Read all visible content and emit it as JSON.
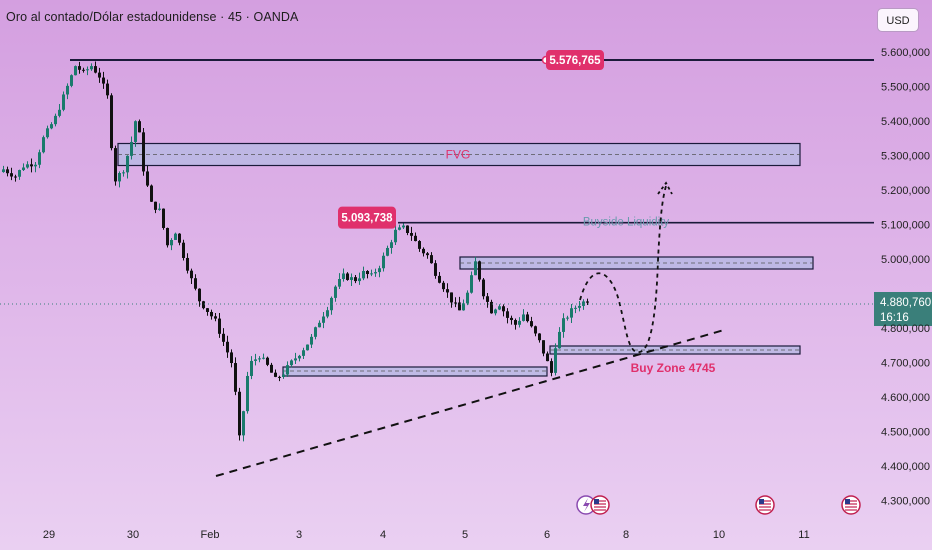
{
  "header": {
    "title": "Oro al contado/Dólar estadounidense · 45 · OANDA",
    "currency": "USD"
  },
  "colors": {
    "candle_up": "#1a7a6c",
    "candle_down": "#111111",
    "zone_fill": "#b8b8e4",
    "zone_border": "#1a1a3a",
    "label_bg": "#e0306c",
    "label_text": "#ffffff",
    "annotation_pink": "#e0306c",
    "annotation_teal": "#6a9aae",
    "price_tag": "#3a7f7a"
  },
  "chart_data": {
    "type": "candlestick",
    "symbol": "Oro al contado/Dólar estadounidense",
    "interval": "45",
    "source": "OANDA",
    "ylim": [
      4250000,
      5680000
    ],
    "yticks": [
      "5.600,000",
      "5.500,000",
      "5.400,000",
      "5.300,000",
      "5.200,000",
      "5.100,000",
      "5.000,000",
      "4.800,000",
      "4.700,000",
      "4.600,000",
      "4.500,000",
      "4.400,000",
      "4.300,000"
    ],
    "yticks_values": [
      5600000,
      5500000,
      5400000,
      5300000,
      5200000,
      5100000,
      5000000,
      4800000,
      4700000,
      4600000,
      4500000,
      4400000,
      4300000
    ],
    "xticks": [
      "29",
      "30",
      "Feb",
      "3",
      "4",
      "5",
      "6",
      "8",
      "10",
      "11"
    ],
    "current_price": "4.880,760",
    "countdown": "16:16",
    "price_path": [
      [
        0,
        5260000
      ],
      [
        3,
        5240000
      ],
      [
        5,
        5270000
      ],
      [
        8,
        5280000
      ],
      [
        10,
        5350000
      ],
      [
        13,
        5410000
      ],
      [
        15,
        5470000
      ],
      [
        17,
        5530000
      ],
      [
        18,
        5560000
      ],
      [
        20,
        5540000
      ],
      [
        22,
        5560000
      ],
      [
        24,
        5530000
      ],
      [
        26,
        5470000
      ],
      [
        27,
        5330000
      ],
      [
        28,
        5230000
      ],
      [
        30,
        5260000
      ],
      [
        32,
        5340000
      ],
      [
        33,
        5400000
      ],
      [
        34,
        5360000
      ],
      [
        35,
        5260000
      ],
      [
        37,
        5160000
      ],
      [
        39,
        5140000
      ],
      [
        41,
        5040000
      ],
      [
        43,
        5080000
      ],
      [
        45,
        5010000
      ],
      [
        47,
        4940000
      ],
      [
        49,
        4880000
      ],
      [
        51,
        4850000
      ],
      [
        53,
        4820000
      ],
      [
        55,
        4760000
      ],
      [
        57,
        4700000
      ],
      [
        58,
        4610000
      ],
      [
        59,
        4480000
      ],
      [
        60,
        4560000
      ],
      [
        61,
        4660000
      ],
      [
        62,
        4700000
      ],
      [
        64,
        4720000
      ],
      [
        66,
        4690000
      ],
      [
        68,
        4650000
      ],
      [
        70,
        4670000
      ],
      [
        72,
        4700000
      ],
      [
        75,
        4740000
      ],
      [
        77,
        4770000
      ],
      [
        79,
        4820000
      ],
      [
        81,
        4860000
      ],
      [
        83,
        4920000
      ],
      [
        85,
        4950000
      ],
      [
        88,
        4940000
      ],
      [
        90,
        4960000
      ],
      [
        92,
        4950000
      ],
      [
        94,
        4980000
      ],
      [
        96,
        5030000
      ],
      [
        98,
        5080000
      ],
      [
        100,
        5090000
      ],
      [
        102,
        5070000
      ],
      [
        104,
        5030000
      ],
      [
        106,
        5010000
      ],
      [
        108,
        4960000
      ],
      [
        110,
        4920000
      ],
      [
        112,
        4880000
      ],
      [
        114,
        4850000
      ],
      [
        116,
        4900000
      ],
      [
        118,
        4990000
      ],
      [
        120,
        4900000
      ],
      [
        122,
        4850000
      ],
      [
        124,
        4870000
      ],
      [
        126,
        4830000
      ],
      [
        128,
        4810000
      ],
      [
        130,
        4840000
      ],
      [
        132,
        4800000
      ],
      [
        134,
        4760000
      ],
      [
        136,
        4700000
      ],
      [
        137,
        4670000
      ],
      [
        138,
        4750000
      ],
      [
        140,
        4820000
      ],
      [
        142,
        4850000
      ],
      [
        144,
        4870000
      ],
      [
        146,
        4880760
      ]
    ],
    "levels": [
      {
        "label": "5.576,765",
        "value": 5576765
      },
      {
        "label": "5.093,738",
        "value": 5093738
      }
    ],
    "zones": [
      {
        "label": "FVG",
        "low": 5240000,
        "high": 5300000
      },
      {
        "label": "",
        "low": 4980000,
        "high": 5010000
      },
      {
        "label": "",
        "low": 4670000,
        "high": 4700000
      },
      {
        "label": "",
        "low": 4750000,
        "high": 4770000
      }
    ],
    "annotations": [
      {
        "text": "FVG",
        "kind": "zone-label"
      },
      {
        "text": "Buyside Liquidity",
        "kind": "level-label"
      },
      {
        "text": "Buy Zone 4745",
        "kind": "zone-label"
      }
    ]
  }
}
